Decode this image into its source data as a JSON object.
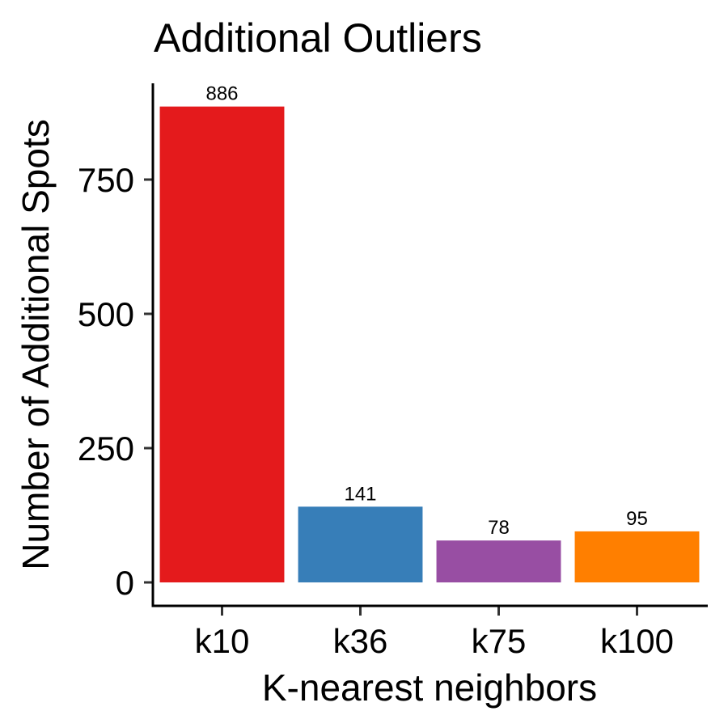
{
  "chart_data": {
    "type": "bar",
    "title": "Additional Outliers",
    "xlabel": "K-nearest neighbors",
    "ylabel": "Number of Additional Spots",
    "categories": [
      "k10",
      "k36",
      "k75",
      "k100"
    ],
    "values": [
      886,
      141,
      78,
      95
    ],
    "data_labels": [
      "886",
      "141",
      "78",
      "95"
    ],
    "colors": [
      "#E41A1C",
      "#377EB8",
      "#984EA3",
      "#FF7F00"
    ],
    "yticks": [
      0,
      250,
      500,
      750
    ],
    "ytick_labels": [
      "0",
      "250",
      "500",
      "750"
    ],
    "ylim": [
      0,
      930
    ],
    "grid": false,
    "legend": "none"
  }
}
